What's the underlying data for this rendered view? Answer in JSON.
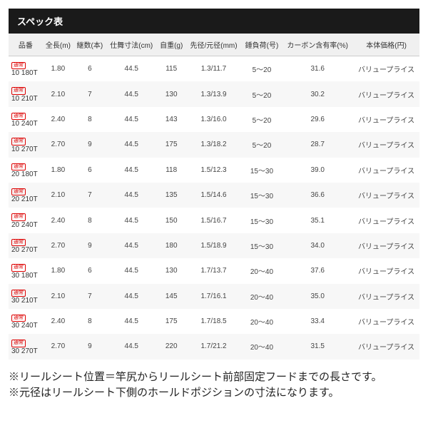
{
  "title": "スペック表",
  "columns": [
    "品番",
    "全長(m)",
    "継数(本)",
    "仕舞寸法(cm)",
    "自重(g)",
    "先径/元径(mm)",
    "錘負荷(号)",
    "カーボン含有率(%)",
    "本体価格(円)"
  ],
  "badge_label": "通常",
  "rows": [
    {
      "code": "10 180T",
      "len": "1.80",
      "pcs": "6",
      "closed": "44.5",
      "wt": "115",
      "dia": "1.3/11.7",
      "load": "5～20",
      "carbon": "31.6",
      "price": "バリュープライス"
    },
    {
      "code": "10 210T",
      "len": "2.10",
      "pcs": "7",
      "closed": "44.5",
      "wt": "130",
      "dia": "1.3/13.9",
      "load": "5～20",
      "carbon": "30.2",
      "price": "バリュープライス"
    },
    {
      "code": "10 240T",
      "len": "2.40",
      "pcs": "8",
      "closed": "44.5",
      "wt": "143",
      "dia": "1.3/16.0",
      "load": "5～20",
      "carbon": "29.6",
      "price": "バリュープライス"
    },
    {
      "code": "10 270T",
      "len": "2.70",
      "pcs": "9",
      "closed": "44.5",
      "wt": "175",
      "dia": "1.3/18.2",
      "load": "5～20",
      "carbon": "28.7",
      "price": "バリュープライス"
    },
    {
      "code": "20 180T",
      "len": "1.80",
      "pcs": "6",
      "closed": "44.5",
      "wt": "118",
      "dia": "1.5/12.3",
      "load": "15～30",
      "carbon": "39.0",
      "price": "バリュープライス"
    },
    {
      "code": "20 210T",
      "len": "2.10",
      "pcs": "7",
      "closed": "44.5",
      "wt": "135",
      "dia": "1.5/14.6",
      "load": "15～30",
      "carbon": "36.6",
      "price": "バリュープライス"
    },
    {
      "code": "20 240T",
      "len": "2.40",
      "pcs": "8",
      "closed": "44.5",
      "wt": "150",
      "dia": "1.5/16.7",
      "load": "15～30",
      "carbon": "35.1",
      "price": "バリュープライス"
    },
    {
      "code": "20 270T",
      "len": "2.70",
      "pcs": "9",
      "closed": "44.5",
      "wt": "180",
      "dia": "1.5/18.9",
      "load": "15～30",
      "carbon": "34.0",
      "price": "バリュープライス"
    },
    {
      "code": "30 180T",
      "len": "1.80",
      "pcs": "6",
      "closed": "44.5",
      "wt": "130",
      "dia": "1.7/13.7",
      "load": "20～40",
      "carbon": "37.6",
      "price": "バリュープライス"
    },
    {
      "code": "30 210T",
      "len": "2.10",
      "pcs": "7",
      "closed": "44.5",
      "wt": "145",
      "dia": "1.7/16.1",
      "load": "20～40",
      "carbon": "35.0",
      "price": "バリュープライス"
    },
    {
      "code": "30 240T",
      "len": "2.40",
      "pcs": "8",
      "closed": "44.5",
      "wt": "175",
      "dia": "1.7/18.5",
      "load": "20～40",
      "carbon": "33.4",
      "price": "バリュープライス"
    },
    {
      "code": "30 270T",
      "len": "2.70",
      "pcs": "9",
      "closed": "44.5",
      "wt": "220",
      "dia": "1.7/21.2",
      "load": "20～40",
      "carbon": "31.5",
      "price": "バリュープライス"
    }
  ],
  "notes": [
    "リールシート位置＝竿尻からリールシート前部固定フードまでの長さです。",
    "元径はリールシート下側のホールドポジションの寸法になります。"
  ]
}
